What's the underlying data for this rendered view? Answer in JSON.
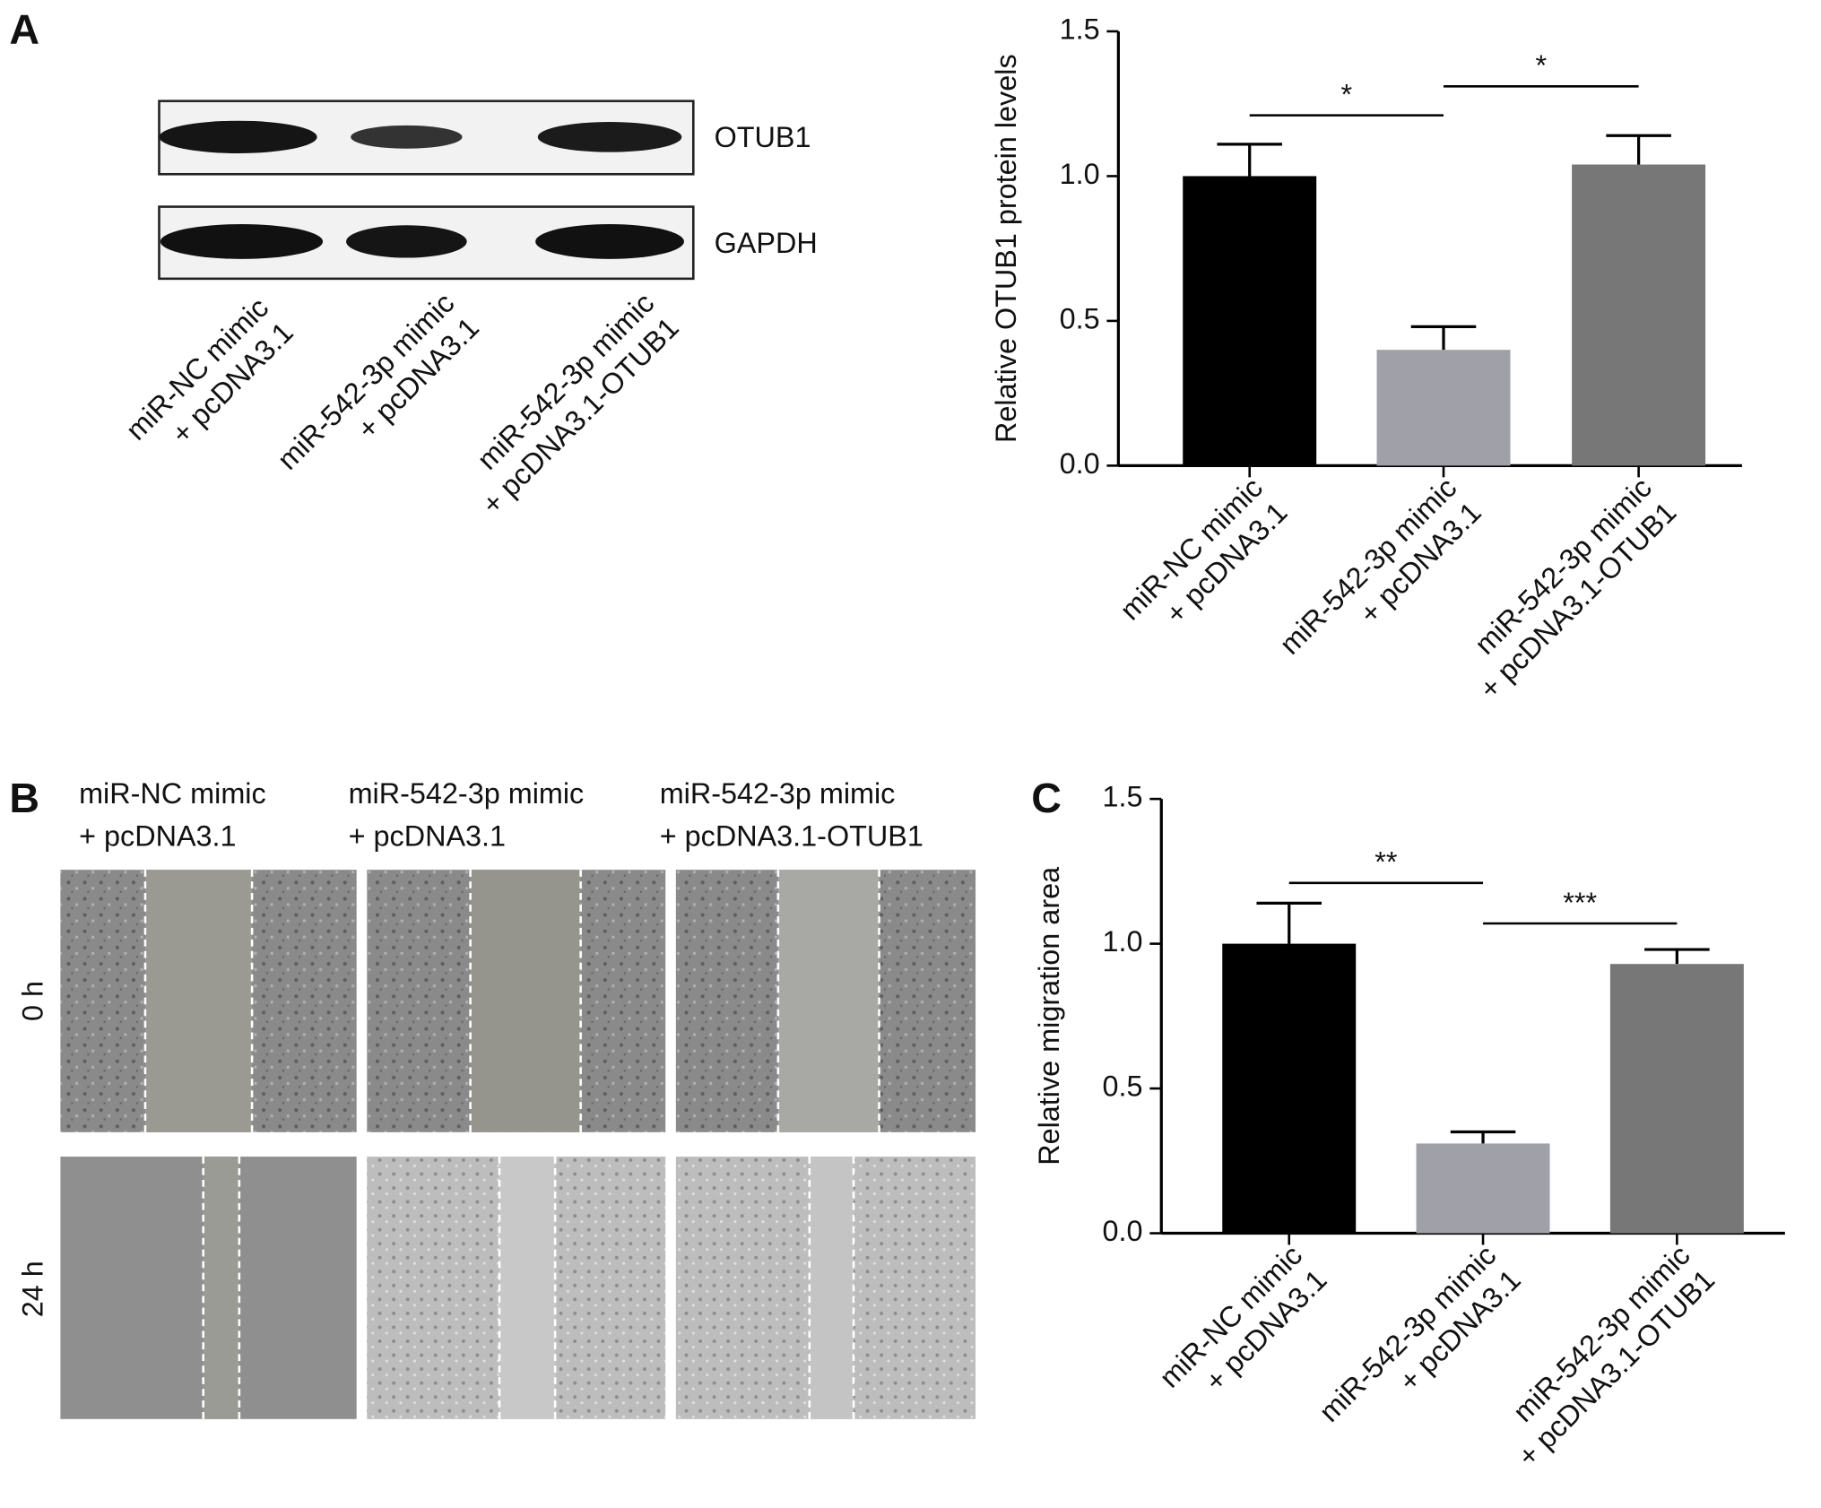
{
  "panels": {
    "a": "A",
    "b": "B",
    "c": "C"
  },
  "blot": {
    "bands": [
      "OTUB1",
      "GAPDH"
    ],
    "lanes": [
      [
        "miR-NC mimic",
        "+ pcDNA3.1"
      ],
      [
        "miR-542-3p mimic",
        "+ pcDNA3.1"
      ],
      [
        "miR-542-3p mimic",
        "+ pcDNA3.1-OTUB1"
      ]
    ]
  },
  "migration": {
    "columns": [
      [
        "miR-NC mimic",
        "+ pcDNA3.1"
      ],
      [
        "miR-542-3p mimic",
        "+ pcDNA3.1"
      ],
      [
        "miR-542-3p mimic",
        "+ pcDNA3.1-OTUB1"
      ]
    ],
    "rows": [
      "0 h",
      "24 h"
    ]
  },
  "chart_data": [
    {
      "type": "bar",
      "y_label": "Relative OTUB1 protein levels",
      "categories": [
        [
          "miR-NC mimic",
          "+ pcDNA3.1"
        ],
        [
          "miR-542-3p mimic",
          "+ pcDNA3.1"
        ],
        [
          "miR-542-3p mimic",
          "+ pcDNA3.1-OTUB1"
        ]
      ],
      "values": [
        1.0,
        0.4,
        1.04
      ],
      "errors": [
        0.11,
        0.08,
        0.1
      ],
      "colors": [
        "#000000",
        "#a0a0a8",
        "#777777"
      ],
      "ylim": [
        0,
        1.5
      ],
      "yticks": [
        {
          "value": 0,
          "label": "0.0"
        },
        {
          "value": 0.5,
          "label": "0.5"
        },
        {
          "value": 1,
          "label": "1.0"
        },
        {
          "value": 1.5,
          "label": "1.5"
        }
      ],
      "annotations": [
        {
          "label": "*",
          "from": 0,
          "to": 1,
          "y": 1.21
        },
        {
          "label": "*",
          "from": 1,
          "to": 2,
          "y": 1.31
        }
      ]
    },
    {
      "type": "bar",
      "y_label": "Relative migration area",
      "categories": [
        [
          "miR-NC mimic",
          "+ pcDNA3.1"
        ],
        [
          "miR-542-3p mimic",
          "+ pcDNA3.1"
        ],
        [
          "miR-542-3p mimic",
          "+ pcDNA3.1-OTUB1"
        ]
      ],
      "values": [
        1.0,
        0.31,
        0.93
      ],
      "errors": [
        0.14,
        0.04,
        0.05
      ],
      "colors": [
        "#000000",
        "#a0a0a8",
        "#777777"
      ],
      "ylim": [
        0,
        1.5
      ],
      "yticks": [
        {
          "value": 0,
          "label": "0.0"
        },
        {
          "value": 0.5,
          "label": "0.5"
        },
        {
          "value": 1,
          "label": "1.0"
        },
        {
          "value": 1.5,
          "label": "1.5"
        }
      ],
      "annotations": [
        {
          "label": "**",
          "from": 0,
          "to": 1,
          "y": 1.21
        },
        {
          "label": "***",
          "from": 1,
          "to": 2,
          "y": 1.07
        }
      ]
    }
  ]
}
